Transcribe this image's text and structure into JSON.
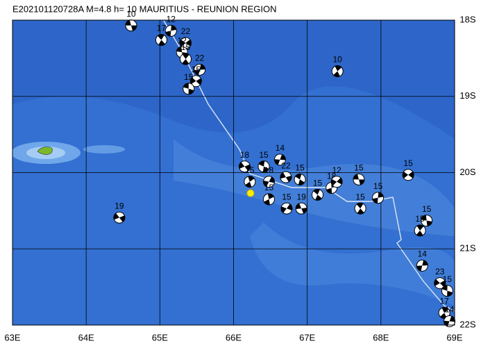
{
  "title": "E202101120728A  M=4.8  h= 10  MAURITIUS - REUNION REGION",
  "lon_ticks": [
    {
      "value": 63,
      "label": "63E"
    },
    {
      "value": 64,
      "label": "64E"
    },
    {
      "value": 65,
      "label": "65E"
    },
    {
      "value": 66,
      "label": "66E"
    },
    {
      "value": 67,
      "label": "67E"
    },
    {
      "value": 68,
      "label": "68E"
    },
    {
      "value": 69,
      "label": "69E"
    }
  ],
  "lat_ticks": [
    {
      "value": 18,
      "label": "18S"
    },
    {
      "value": 19,
      "label": "19S"
    },
    {
      "value": 20,
      "label": "20S"
    },
    {
      "value": 21,
      "label": "21S"
    },
    {
      "value": 22,
      "label": "22S"
    }
  ],
  "events": [
    {
      "lon": 64.61,
      "lat": 18.07,
      "depth": "10"
    },
    {
      "lon": 65.02,
      "lat": 18.26,
      "depth": "17"
    },
    {
      "lon": 65.15,
      "lat": 18.14,
      "depth": "12"
    },
    {
      "lon": 65.35,
      "lat": 18.3,
      "depth": "22"
    },
    {
      "lon": 65.3,
      "lat": 18.42,
      "depth": "12"
    },
    {
      "lon": 65.35,
      "lat": 18.51,
      "depth": "15"
    },
    {
      "lon": 65.54,
      "lat": 18.65,
      "depth": "22"
    },
    {
      "lon": 65.49,
      "lat": 18.8,
      "depth": "15"
    },
    {
      "lon": 65.39,
      "lat": 18.9,
      "depth": "15"
    },
    {
      "lon": 67.41,
      "lat": 18.67,
      "depth": "10"
    },
    {
      "lon": 66.63,
      "lat": 19.83,
      "depth": "14"
    },
    {
      "lon": 66.15,
      "lat": 19.92,
      "depth": "18"
    },
    {
      "lon": 66.41,
      "lat": 19.92,
      "depth": "15"
    },
    {
      "lon": 66.22,
      "lat": 20.12,
      "depth": "15"
    },
    {
      "lon": 66.48,
      "lat": 20.12,
      "depth": "18"
    },
    {
      "lon": 66.71,
      "lat": 20.06,
      "depth": "22"
    },
    {
      "lon": 66.9,
      "lat": 20.09,
      "depth": "15"
    },
    {
      "lon": 66.48,
      "lat": 20.35,
      "depth": "15"
    },
    {
      "lon": 66.72,
      "lat": 20.47,
      "depth": "15"
    },
    {
      "lon": 66.92,
      "lat": 20.47,
      "depth": "19"
    },
    {
      "lon": 67.14,
      "lat": 20.29,
      "depth": "15"
    },
    {
      "lon": 67.33,
      "lat": 20.2,
      "depth": "18"
    },
    {
      "lon": 67.4,
      "lat": 20.12,
      "depth": "12"
    },
    {
      "lon": 67.7,
      "lat": 20.09,
      "depth": "15"
    },
    {
      "lon": 67.72,
      "lat": 20.47,
      "depth": "15"
    },
    {
      "lon": 67.96,
      "lat": 20.33,
      "depth": "15"
    },
    {
      "lon": 68.37,
      "lat": 20.03,
      "depth": "15"
    },
    {
      "lon": 68.62,
      "lat": 20.63,
      "depth": "15"
    },
    {
      "lon": 68.53,
      "lat": 20.76,
      "depth": "15"
    },
    {
      "lon": 68.56,
      "lat": 21.22,
      "depth": "14"
    },
    {
      "lon": 68.8,
      "lat": 21.45,
      "depth": "23"
    },
    {
      "lon": 68.9,
      "lat": 21.55,
      "depth": "15"
    },
    {
      "lon": 68.86,
      "lat": 21.84,
      "depth": "17"
    },
    {
      "lon": 68.93,
      "lat": 21.95,
      "depth": "14"
    },
    {
      "lon": 64.45,
      "lat": 20.59,
      "depth": "19"
    }
  ],
  "epicenter": {
    "lon": 66.23,
    "lat": 20.27
  }
}
